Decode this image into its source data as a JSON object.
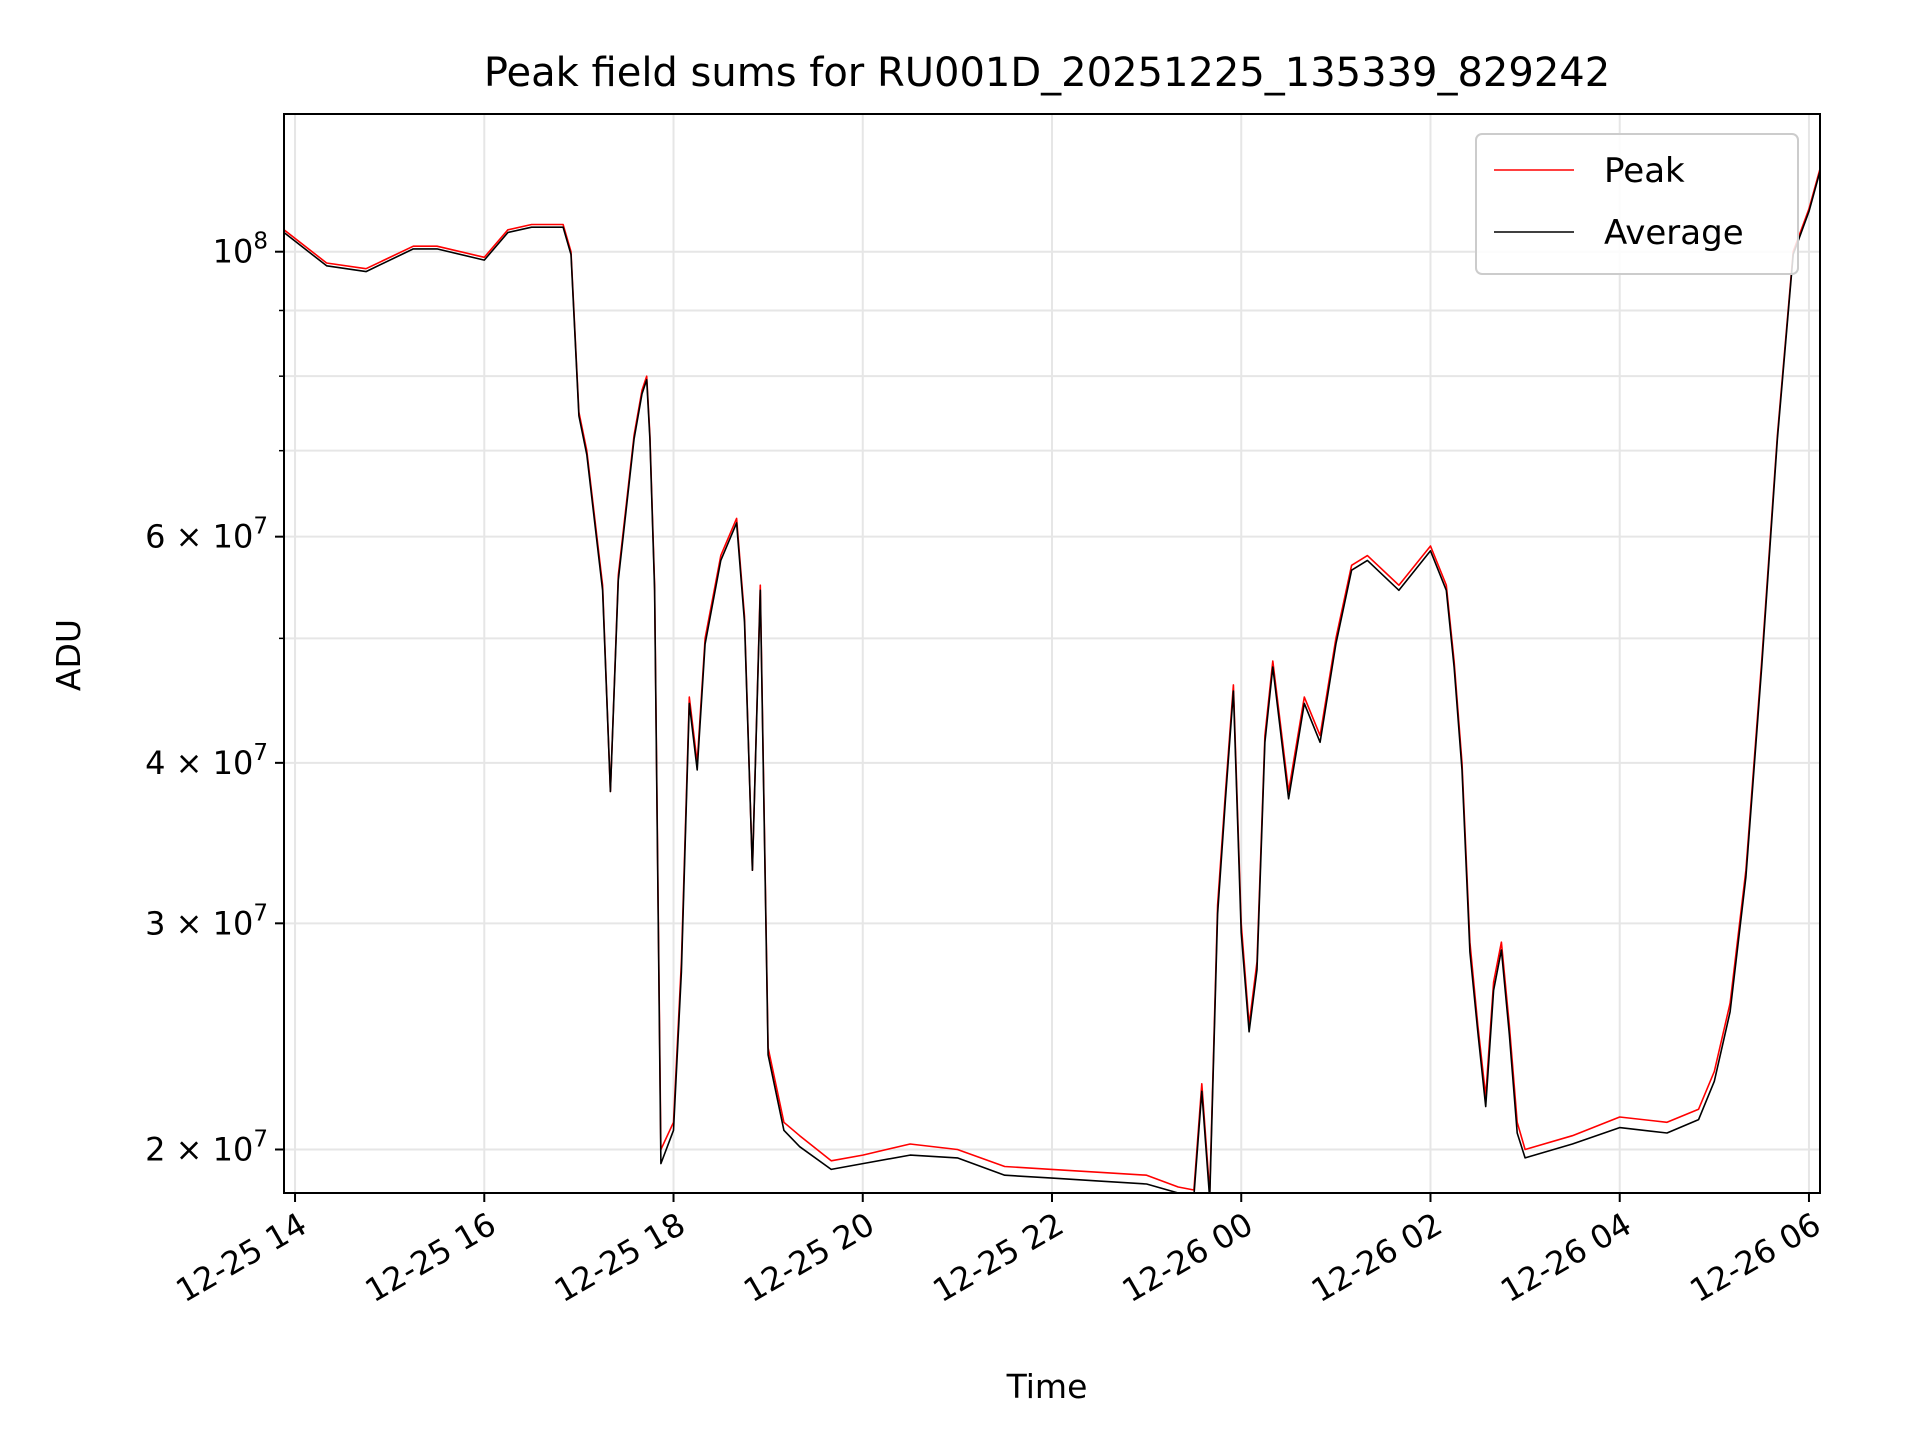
{
  "chart_data": {
    "type": "line",
    "title": "Peak field sums for RU001D_20251225_135339_829242",
    "xlabel": "Time",
    "ylabel": "ADU",
    "yscale": "log",
    "grid": true,
    "legend_position": "top-right",
    "xlim": [
      "2025-12-25 13:53",
      "2025-12-26 06:07"
    ],
    "ylim": [
      18500000,
      128000000
    ],
    "x_ticks": [
      "12-25 14",
      "12-25 16",
      "12-25 18",
      "12-25 20",
      "12-25 22",
      "12-26 00",
      "12-26 02",
      "12-26 04",
      "12-26 06"
    ],
    "x_tick_times": [
      "2025-12-25 14:00",
      "2025-12-25 16:00",
      "2025-12-25 18:00",
      "2025-12-25 20:00",
      "2025-12-25 22:00",
      "2025-12-26 00:00",
      "2025-12-26 02:00",
      "2025-12-26 04:00",
      "2025-12-26 06:00"
    ],
    "y_ticks": [
      {
        "value": 100000000,
        "label": "10^8"
      },
      {
        "value": 60000000,
        "label": "6 × 10^7"
      },
      {
        "value": 40000000,
        "label": "4 × 10^7"
      },
      {
        "value": 30000000,
        "label": "3 × 10^7"
      },
      {
        "value": 20000000,
        "label": "2 × 10^7"
      }
    ],
    "y_minor_ticks": [
      90000000,
      80000000,
      70000000,
      50000000
    ],
    "x": [
      "2025-12-25 13:53",
      "2025-12-25 14:20",
      "2025-12-25 14:45",
      "2025-12-25 15:15",
      "2025-12-25 15:30",
      "2025-12-25 16:00",
      "2025-12-25 16:15",
      "2025-12-25 16:30",
      "2025-12-25 16:50",
      "2025-12-25 16:55",
      "2025-12-25 17:00",
      "2025-12-25 17:05",
      "2025-12-25 17:15",
      "2025-12-25 17:20",
      "2025-12-25 17:25",
      "2025-12-25 17:35",
      "2025-12-25 17:40",
      "2025-12-25 17:43",
      "2025-12-25 17:45",
      "2025-12-25 17:48",
      "2025-12-25 17:52",
      "2025-12-25 18:00",
      "2025-12-25 18:05",
      "2025-12-25 18:10",
      "2025-12-25 18:15",
      "2025-12-25 18:20",
      "2025-12-25 18:30",
      "2025-12-25 18:40",
      "2025-12-25 18:45",
      "2025-12-25 18:50",
      "2025-12-25 18:55",
      "2025-12-25 19:00",
      "2025-12-25 19:10",
      "2025-12-25 19:20",
      "2025-12-25 19:40",
      "2025-12-25 20:00",
      "2025-12-25 20:30",
      "2025-12-25 21:00",
      "2025-12-25 21:30",
      "2025-12-25 22:00",
      "2025-12-25 22:30",
      "2025-12-25 23:00",
      "2025-12-25 23:20",
      "2025-12-25 23:30",
      "2025-12-25 23:35",
      "2025-12-25 23:40",
      "2025-12-25 23:45",
      "2025-12-25 23:50",
      "2025-12-25 23:55",
      "2025-12-26 00:00",
      "2025-12-26 00:05",
      "2025-12-26 00:10",
      "2025-12-26 00:15",
      "2025-12-26 00:20",
      "2025-12-26 00:30",
      "2025-12-26 00:40",
      "2025-12-26 00:50",
      "2025-12-26 01:00",
      "2025-12-26 01:10",
      "2025-12-26 01:20",
      "2025-12-26 01:40",
      "2025-12-26 02:00",
      "2025-12-26 02:10",
      "2025-12-26 02:15",
      "2025-12-26 02:20",
      "2025-12-26 02:25",
      "2025-12-26 02:30",
      "2025-12-26 02:35",
      "2025-12-26 02:40",
      "2025-12-26 02:45",
      "2025-12-26 02:50",
      "2025-12-26 02:55",
      "2025-12-26 03:00",
      "2025-12-26 03:30",
      "2025-12-26 04:00",
      "2025-12-26 04:30",
      "2025-12-26 04:50",
      "2025-12-26 05:00",
      "2025-12-26 05:10",
      "2025-12-26 05:20",
      "2025-12-26 05:30",
      "2025-12-26 05:40",
      "2025-12-26 05:50",
      "2025-12-26 06:00",
      "2025-12-26 06:07"
    ],
    "series": [
      {
        "name": "Peak",
        "color": "#ff0000",
        "values": [
          104000000,
          98000000,
          97000000,
          101000000,
          101000000,
          99000000,
          104000000,
          105000000,
          105000000,
          100000000,
          75000000,
          70000000,
          55000000,
          38000000,
          56000000,
          72000000,
          78000000,
          80000000,
          72000000,
          55000000,
          20000000,
          21000000,
          28000000,
          45000000,
          40000000,
          50000000,
          58000000,
          62000000,
          52000000,
          33000000,
          55000000,
          24000000,
          21000000,
          20500000,
          19600000,
          19800000,
          20200000,
          20000000,
          19400000,
          19300000,
          19200000,
          19100000,
          18700000,
          18600000,
          22500000,
          18500000,
          31000000,
          38000000,
          46000000,
          30000000,
          25000000,
          28000000,
          42000000,
          48000000,
          38000000,
          45000000,
          42000000,
          50000000,
          57000000,
          58000000,
          55000000,
          59000000,
          55000000,
          48000000,
          40000000,
          29000000,
          25000000,
          22000000,
          27000000,
          29000000,
          25000000,
          21000000,
          20000000,
          20500000,
          21200000,
          21000000,
          21500000,
          23000000,
          26000000,
          33000000,
          48000000,
          72000000,
          100000000,
          108000000,
          116000000
        ]
      },
      {
        "name": "Average",
        "color": "#000000",
        "values": [
          103500000,
          97500000,
          96500000,
          100500000,
          100500000,
          98500000,
          103500000,
          104500000,
          104500000,
          99500000,
          74500000,
          69500000,
          54500000,
          38000000,
          55500000,
          71500000,
          77500000,
          79500000,
          71500000,
          54500000,
          19500000,
          20700000,
          27500000,
          44500000,
          39500000,
          49500000,
          57500000,
          61500000,
          51500000,
          33000000,
          54500000,
          23700000,
          20700000,
          20100000,
          19300000,
          19500000,
          19800000,
          19700000,
          19100000,
          19000000,
          18900000,
          18800000,
          18500000,
          18400000,
          22200000,
          18300000,
          30500000,
          37500000,
          45500000,
          29500000,
          24700000,
          27600000,
          41500000,
          47500000,
          37500000,
          44500000,
          41500000,
          49500000,
          56500000,
          57500000,
          54500000,
          58500000,
          54500000,
          47500000,
          39500000,
          28500000,
          24700000,
          21600000,
          26600000,
          28600000,
          24600000,
          20600000,
          19700000,
          20200000,
          20800000,
          20600000,
          21100000,
          22600000,
          25600000,
          32600000,
          47500000,
          71500000,
          99500000,
          107500000,
          115500000
        ]
      }
    ]
  }
}
